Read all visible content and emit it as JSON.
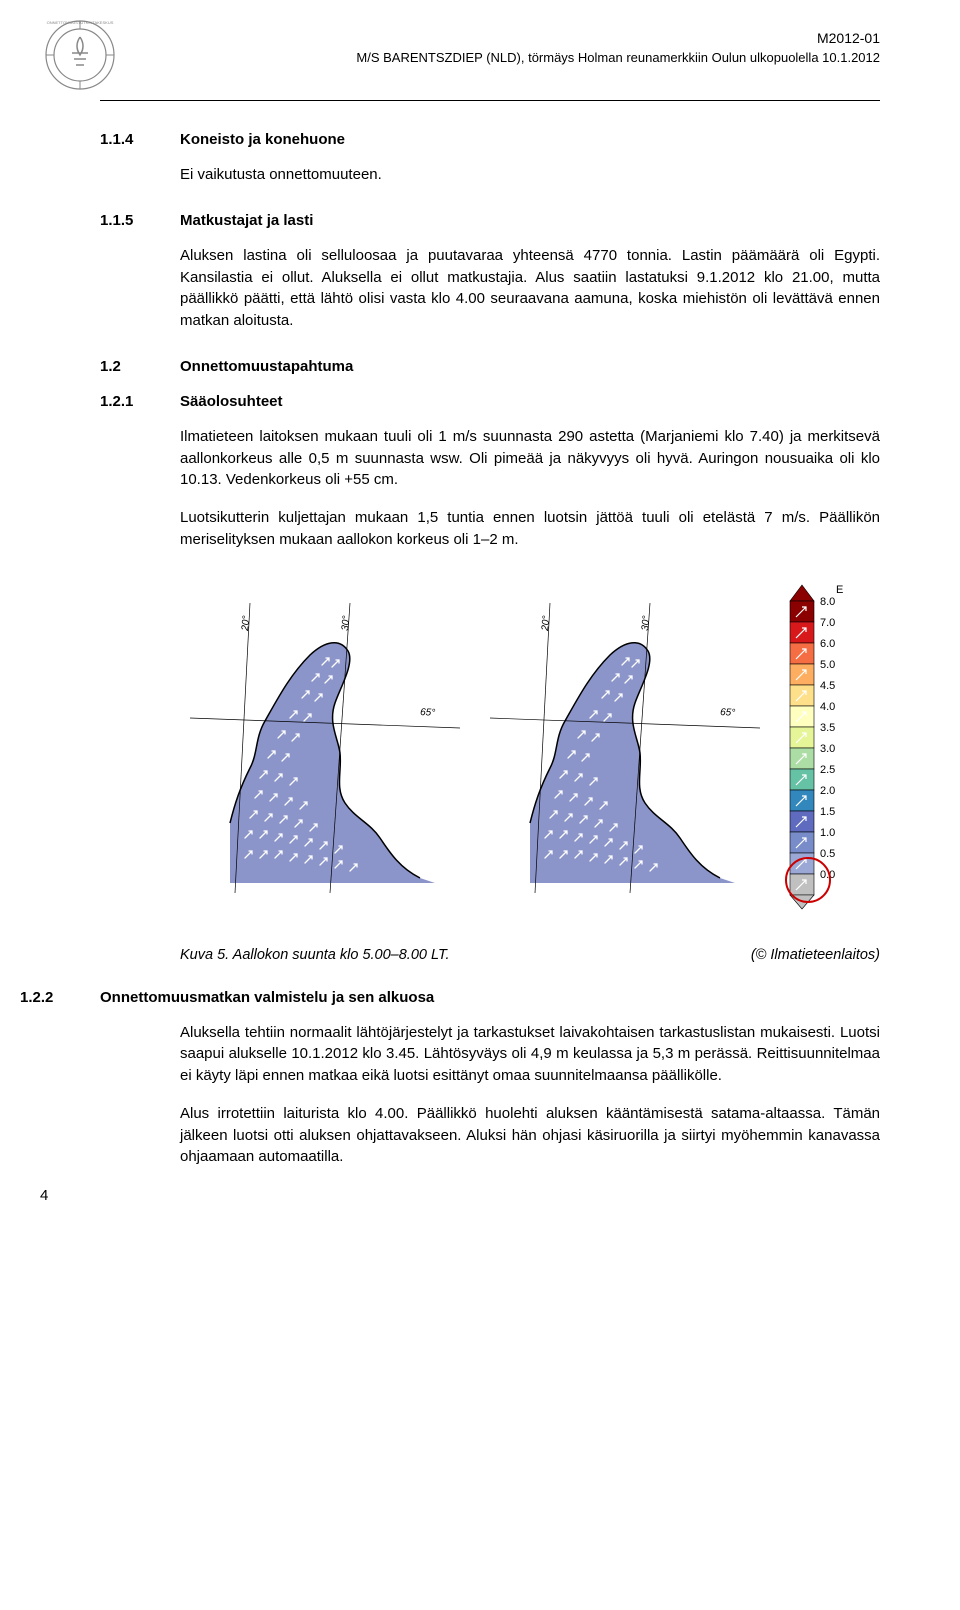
{
  "header": {
    "code": "M2012-01",
    "title": "M/S BARENTSZDIEP (NLD), törmäys Holman reunamerkkiin Oulun ulkopuolella 10.1.2012"
  },
  "sections": [
    {
      "num": "1.1.4",
      "title": "Koneisto ja konehuone",
      "paras": [
        "Ei vaikutusta onnettomuuteen."
      ]
    },
    {
      "num": "1.1.5",
      "title": "Matkustajat ja lasti",
      "paras": [
        "Aluksen lastina oli selluloosaa ja puutavaraa yhteensä 4770 tonnia. Lastin päämäärä oli Egypti. Kansilastia ei ollut. Aluksella ei ollut matkustajia. Alus saatiin lastatuksi 9.1.2012 klo 21.00, mutta päällikkö päätti, että lähtö olisi vasta klo 4.00 seuraavana aamuna, koska miehistön oli levättävä ennen matkan aloitusta."
      ]
    },
    {
      "num": "1.2",
      "title": "Onnettomuustapahtuma",
      "paras": []
    },
    {
      "num": "1.2.1",
      "title": "Sääolosuhteet",
      "paras": [
        "Ilmatieteen laitoksen mukaan tuuli oli 1 m/s suunnasta 290 astetta (Marjaniemi klo 7.40) ja merkitsevä aallonkorkeus alle 0,5 m suunnasta wsw. Oli pimeää ja näkyvyys oli hyvä. Auringon nousuaika oli klo 10.13. Vedenkorkeus oli +55 cm.",
        "Luotsikutterin kuljettajan mukaan 1,5 tuntia ennen luotsin jättöä tuuli oli etelästä 7 m/s. Päällikön meriselityksen mukaan aallokon korkeus oli 1–2 m."
      ]
    }
  ],
  "figure": {
    "caption_left": "Kuva 5.      Aallokon suunta klo 5.00–8.00 LT.",
    "caption_right": "(© Ilmatieteenlaitos)",
    "legend": {
      "values": [
        "8.0",
        "7.0",
        "6.0",
        "5.0",
        "4.5",
        "4.0",
        "3.5",
        "3.0",
        "2.5",
        "2.0",
        "1.5",
        "1.0",
        "0.5",
        "0.0"
      ],
      "colors": [
        "#8b0000",
        "#d7191c",
        "#f46d43",
        "#fdae61",
        "#fee08b",
        "#ffffbf",
        "#e6f598",
        "#abdda4",
        "#66c2a5",
        "#3288bd",
        "#5e6bbf",
        "#788cc9",
        "#9ba8d6",
        "#c0c0c0"
      ]
    },
    "map": {
      "sea_color": "#8b95c9",
      "land_color": "#ffffff",
      "border_color": "#000000",
      "arrow_color": "#ffffff",
      "grid_color": "#000000",
      "lon_labels": [
        "20°",
        "30°"
      ],
      "lat_label": "65°"
    }
  },
  "section_after_figure": {
    "num": "1.2.2",
    "title": "Onnettomuusmatkan valmistelu ja sen alkuosa",
    "paras": [
      "Aluksella tehtiin normaalit lähtöjärjestelyt ja tarkastukset laivakohtaisen tarkastuslistan mukaisesti. Luotsi saapui alukselle 10.1.2012 klo 3.45. Lähtösyväys oli 4,9 m keulassa ja 5,3 m perässä. Reittisuunnitelmaa ei käyty läpi ennen matkaa eikä luotsi esittänyt omaa suunnitelmaansa päällikölle.",
      "Alus irrotettiin laiturista klo 4.00. Päällikkö huolehti aluksen kääntämisestä satama-altaassa. Tämän jälkeen luotsi otti aluksen ohjattavakseen. Aluksi hän ohjasi käsiruorilla ja siirtyi myöhemmin kanavassa ohjaamaan automaatilla."
    ]
  },
  "page_number": "4"
}
